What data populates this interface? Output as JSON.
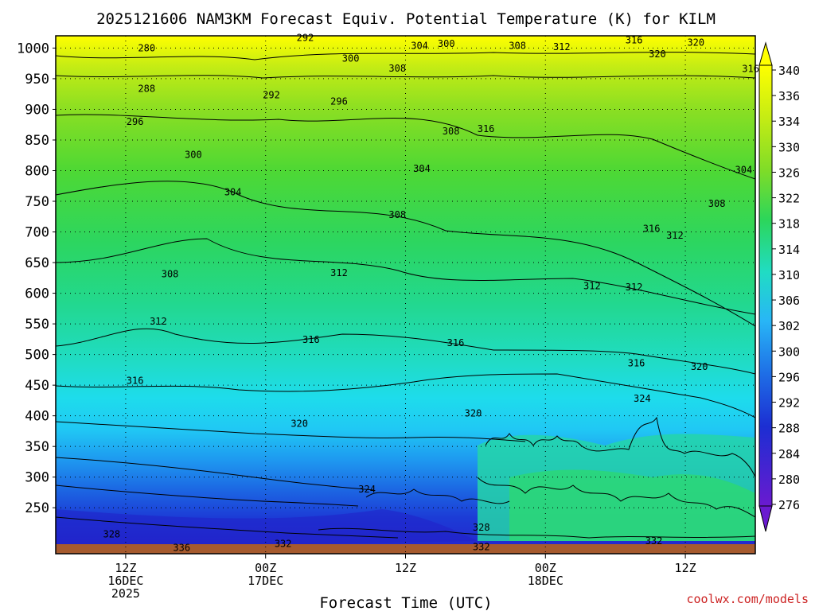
{
  "chart_data": {
    "type": "heatmap",
    "title": "2025121606 NAM3KM Forecast Equiv. Potential Temperature (K) for KILM",
    "xlabel": "Forecast Time (UTC)",
    "ylabel": "",
    "credit": "coolwx.com/models",
    "y_ticks": [
      250,
      300,
      350,
      400,
      450,
      500,
      550,
      600,
      650,
      700,
      750,
      800,
      850,
      900,
      950,
      1000
    ],
    "ylim": [
      1020,
      175
    ],
    "x_ticks": [
      {
        "hours": 6,
        "lines": [
          "12Z",
          "16DEC",
          "2025"
        ]
      },
      {
        "hours": 18,
        "lines": [
          "00Z",
          "17DEC"
        ]
      },
      {
        "hours": 30,
        "lines": [
          "12Z",
          ""
        ]
      },
      {
        "hours": 42,
        "lines": [
          "00Z",
          "18DEC"
        ]
      },
      {
        "hours": 54,
        "lines": [
          "12Z",
          ""
        ]
      }
    ],
    "xlim": [
      0,
      60
    ],
    "colorbar": {
      "labels": [
        340,
        336,
        334,
        330,
        326,
        322,
        318,
        314,
        310,
        306,
        302,
        300,
        296,
        292,
        288,
        284,
        280,
        276
      ],
      "colors": [
        "#ffff00",
        "#e4f40a",
        "#c4ec14",
        "#a2e41e",
        "#7edc28",
        "#50d830",
        "#2cd65a",
        "#20d895",
        "#20dcc4",
        "#1ed2f0",
        "#28b6f6",
        "#1e90f0",
        "#1e6ee6",
        "#1a4cdc",
        "#1c2ed2",
        "#2a20cc",
        "#4a1ccc",
        "#6a1ad0"
      ]
    },
    "contour_labels": [
      {
        "text": "336",
        "hours": 10.8,
        "p": 185
      },
      {
        "text": "332",
        "hours": 19.5,
        "p": 191
      },
      {
        "text": "332",
        "hours": 36.5,
        "p": 186
      },
      {
        "text": "332",
        "hours": 51.3,
        "p": 196
      },
      {
        "text": "328",
        "hours": 4.8,
        "p": 207
      },
      {
        "text": "328",
        "hours": 36.5,
        "p": 218
      },
      {
        "text": "324",
        "hours": 26.7,
        "p": 280
      },
      {
        "text": "324",
        "hours": 50.3,
        "p": 428
      },
      {
        "text": "320",
        "hours": 20.9,
        "p": 387
      },
      {
        "text": "320",
        "hours": 35.8,
        "p": 404
      },
      {
        "text": "320",
        "hours": 55.2,
        "p": 480
      },
      {
        "text": "316",
        "hours": 6.8,
        "p": 457
      },
      {
        "text": "316",
        "hours": 21.9,
        "p": 524
      },
      {
        "text": "316",
        "hours": 34.3,
        "p": 519
      },
      {
        "text": "316",
        "hours": 49.8,
        "p": 486
      },
      {
        "text": "312",
        "hours": 8.8,
        "p": 554
      },
      {
        "text": "312",
        "hours": 24.3,
        "p": 633
      },
      {
        "text": "312",
        "hours": 46.0,
        "p": 612
      },
      {
        "text": "312",
        "hours": 49.6,
        "p": 610
      },
      {
        "text": "312",
        "hours": 53.1,
        "p": 694
      },
      {
        "text": "308",
        "hours": 9.8,
        "p": 631
      },
      {
        "text": "308",
        "hours": 29.3,
        "p": 728
      },
      {
        "text": "308",
        "hours": 56.7,
        "p": 746
      },
      {
        "text": "304",
        "hours": 15.2,
        "p": 765
      },
      {
        "text": "304",
        "hours": 31.4,
        "p": 803
      },
      {
        "text": "304",
        "hours": 59.0,
        "p": 801
      },
      {
        "text": "300",
        "hours": 11.8,
        "p": 826
      },
      {
        "text": "296",
        "hours": 6.8,
        "p": 880
      },
      {
        "text": "296",
        "hours": 24.3,
        "p": 913
      },
      {
        "text": "292",
        "hours": 18.5,
        "p": 923
      },
      {
        "text": "288",
        "hours": 7.8,
        "p": 934
      },
      {
        "text": "280",
        "hours": 7.8,
        "p": 1000
      },
      {
        "text": "300",
        "hours": 25.3,
        "p": 983
      },
      {
        "text": "308",
        "hours": 29.3,
        "p": 967
      },
      {
        "text": "304",
        "hours": 31.2,
        "p": 1004
      },
      {
        "text": "300",
        "hours": 33.5,
        "p": 1007
      },
      {
        "text": "308",
        "hours": 39.6,
        "p": 1004
      },
      {
        "text": "312",
        "hours": 43.4,
        "p": 1002
      },
      {
        "text": "316",
        "hours": 49.6,
        "p": 1013
      },
      {
        "text": "320",
        "hours": 51.6,
        "p": 990
      },
      {
        "text": "320",
        "hours": 54.9,
        "p": 1009
      },
      {
        "text": "316",
        "hours": 59.6,
        "p": 966
      },
      {
        "text": "316",
        "hours": 36.9,
        "p": 868
      },
      {
        "text": "316",
        "hours": 51.1,
        "p": 705
      },
      {
        "text": "308",
        "hours": 33.9,
        "p": 864
      },
      {
        "text": "292",
        "hours": 21.4,
        "p": 1017
      }
    ]
  }
}
